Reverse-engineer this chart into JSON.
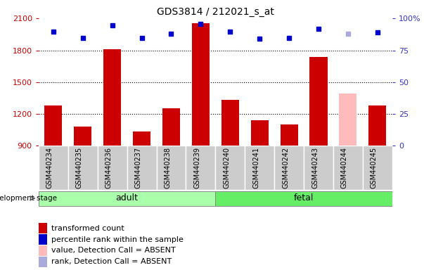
{
  "title": "GDS3814 / 212021_s_at",
  "categories": [
    "GSM440234",
    "GSM440235",
    "GSM440236",
    "GSM440237",
    "GSM440238",
    "GSM440239",
    "GSM440240",
    "GSM440241",
    "GSM440242",
    "GSM440243",
    "GSM440244",
    "GSM440245"
  ],
  "bar_values": [
    1280,
    1080,
    1810,
    1030,
    1250,
    2060,
    1330,
    1140,
    1100,
    1740,
    1390,
    1280
  ],
  "bar_colors": [
    "#cc0000",
    "#cc0000",
    "#cc0000",
    "#cc0000",
    "#cc0000",
    "#cc0000",
    "#cc0000",
    "#cc0000",
    "#cc0000",
    "#cc0000",
    "#ffbbbb",
    "#cc0000"
  ],
  "rank_values": [
    90,
    85,
    95,
    85,
    88,
    96,
    90,
    84,
    85,
    92,
    88,
    89
  ],
  "rank_colors": [
    "#0000cc",
    "#0000cc",
    "#0000cc",
    "#0000cc",
    "#0000cc",
    "#0000cc",
    "#0000cc",
    "#0000cc",
    "#0000cc",
    "#0000cc",
    "#aaaadd",
    "#0000cc"
  ],
  "ymin": 900,
  "ymax": 2100,
  "yticks": [
    900,
    1200,
    1500,
    1800,
    2100
  ],
  "y2min": 0,
  "y2max": 100,
  "y2ticks": [
    0,
    25,
    50,
    75,
    100
  ],
  "adult_samples": 6,
  "fetal_samples": 6,
  "group_labels": [
    "adult",
    "fetal"
  ],
  "adult_color": "#aaffaa",
  "fetal_color": "#66ee66",
  "tick_area_color": "#cccccc",
  "ylabel_left_color": "#cc0000",
  "ylabel_right_color": "#3333cc",
  "legend_items": [
    {
      "label": "transformed count",
      "color": "#cc0000"
    },
    {
      "label": "percentile rank within the sample",
      "color": "#0000cc"
    },
    {
      "label": "value, Detection Call = ABSENT",
      "color": "#ffbbbb"
    },
    {
      "label": "rank, Detection Call = ABSENT",
      "color": "#aaaadd"
    }
  ]
}
